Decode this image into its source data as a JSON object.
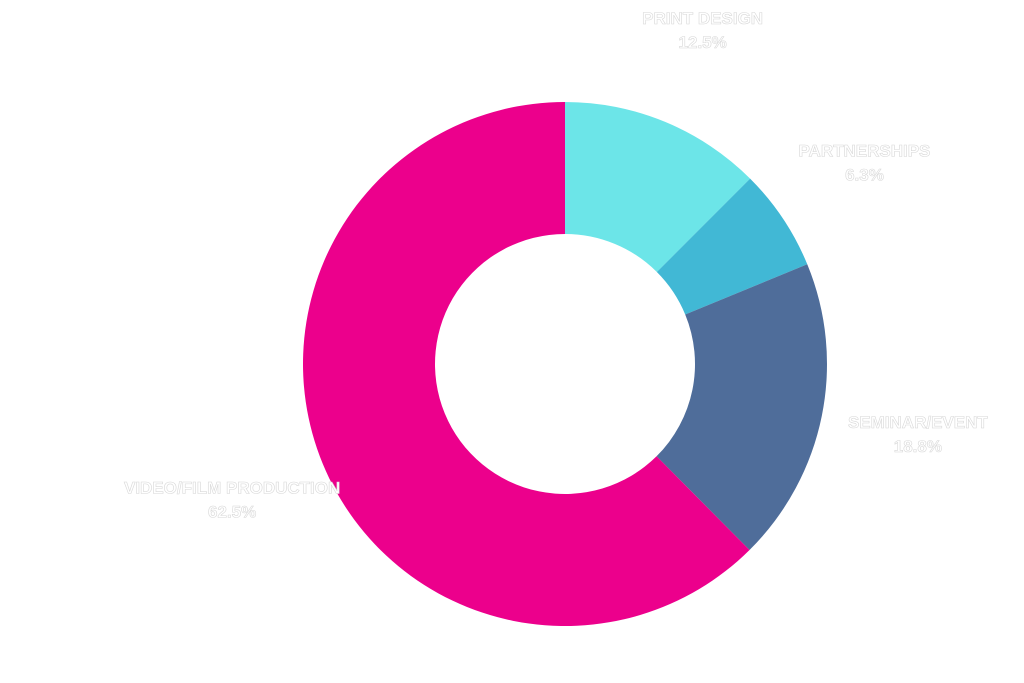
{
  "chart_data": {
    "type": "donut",
    "categories": [
      "PRINT DESIGN",
      "PARTNERSHIPS",
      "SEMINAR/EVENT",
      "VIDEO/FILM PRODUCTION"
    ],
    "values": [
      12.5,
      6.3,
      18.8,
      62.5
    ],
    "value_labels": [
      "12.5%",
      "6.3%",
      "18.8%",
      "62.5%"
    ],
    "colors": [
      "#6ce5e8",
      "#41b8d5",
      "#4f6d9a",
      "#ec008c"
    ]
  }
}
